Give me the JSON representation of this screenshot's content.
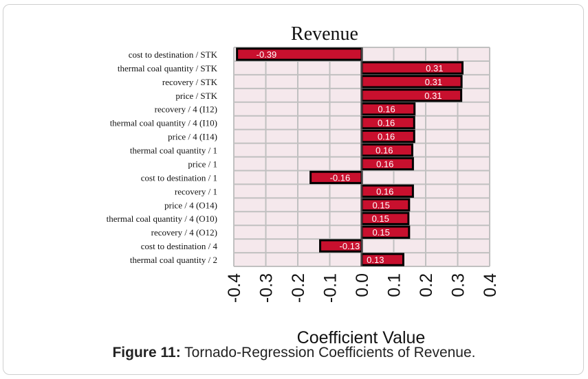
{
  "figure": {
    "label": "Figure 11:",
    "caption": " Tornado-Regression Coefficients of Revenue."
  },
  "colors": {
    "bar": "#c8102e",
    "bar_border": "#000000",
    "plot_bg": "#f5e8ec",
    "grid": "#c0c0c0"
  },
  "chart_data": {
    "type": "bar",
    "orientation": "horizontal",
    "title": "Revenue",
    "xlabel": "Coefficient Value",
    "xlim": [
      -0.4,
      0.4
    ],
    "xticks": [
      "-0.4",
      "-0.3",
      "-0.2",
      "-0.1",
      "0.0",
      "0.1",
      "0.2",
      "0.3",
      "0.4"
    ],
    "grid": true,
    "categories": [
      "cost to destination / STK",
      "thermal coal quantity / STK",
      "recovery / STK",
      "price / STK",
      "recovery / 4 (I12)",
      "thermal coal quantity / 4 (I10)",
      "price / 4 (I14)",
      "thermal coal quantity / 1",
      "price / 1",
      "cost to destination / 1",
      "recovery / 1",
      "price / 4 (O14)",
      "thermal coal quantity / 4 (O10)",
      "recovery / 4 (O12)",
      "cost to destination / 4",
      "thermal coal quantity / 2"
    ],
    "values": [
      -0.39,
      0.315,
      0.312,
      0.311,
      0.165,
      0.164,
      0.164,
      0.158,
      0.16,
      -0.16,
      0.16,
      0.148,
      0.146,
      0.148,
      -0.13,
      0.13
    ],
    "data_labels": [
      "-0.39",
      "0.31",
      "0.31",
      "0.31",
      "0.16",
      "0.16",
      "0.16",
      "0.16",
      "0.16",
      "-0.16",
      "0.16",
      "0.15",
      "0.15",
      "0.15",
      "-0.13",
      "0.13"
    ]
  }
}
